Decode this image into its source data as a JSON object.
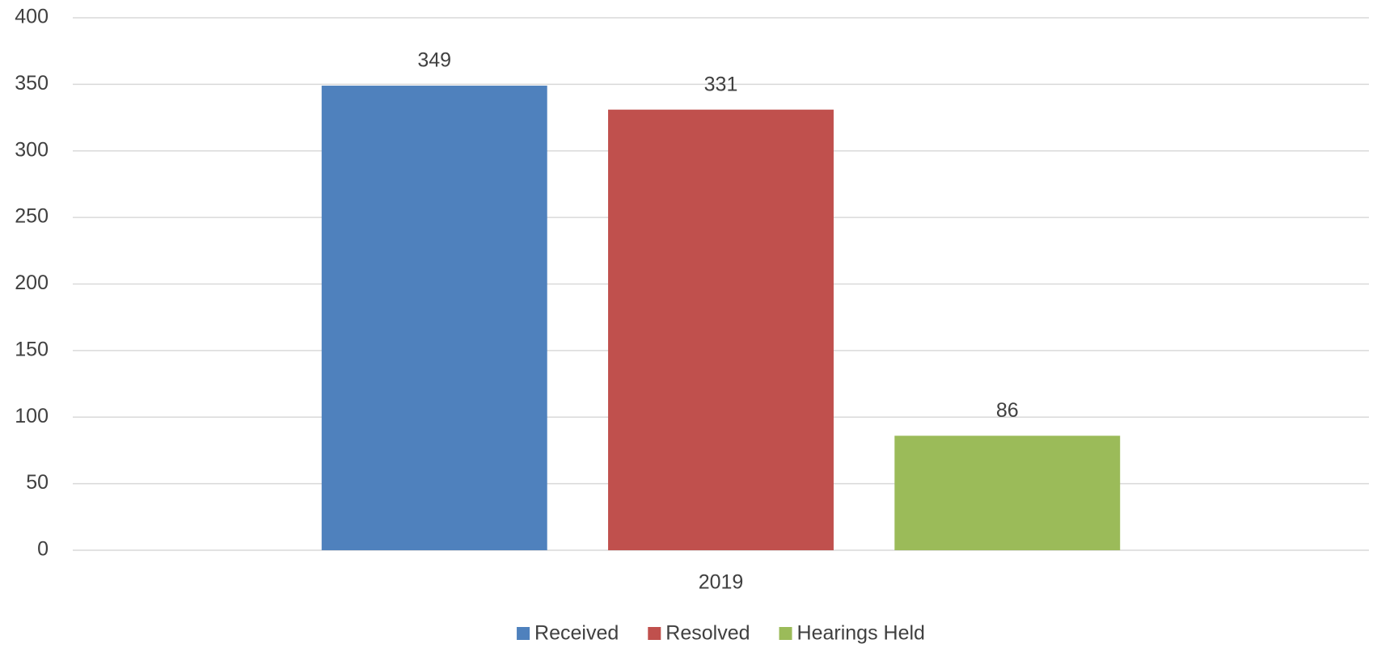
{
  "chart_data": {
    "type": "bar",
    "categories": [
      "2019"
    ],
    "series": [
      {
        "name": "Received",
        "color": "#4f81bd",
        "values": [
          349
        ]
      },
      {
        "name": "Resolved",
        "color": "#c0504d",
        "values": [
          331
        ]
      },
      {
        "name": "Hearings Held",
        "color": "#9bbb59",
        "values": [
          86
        ]
      }
    ],
    "ylim": [
      0,
      400
    ],
    "yticks": [
      0,
      50,
      100,
      150,
      200,
      250,
      300,
      350,
      400
    ],
    "grid": true,
    "legend": "bottom"
  }
}
